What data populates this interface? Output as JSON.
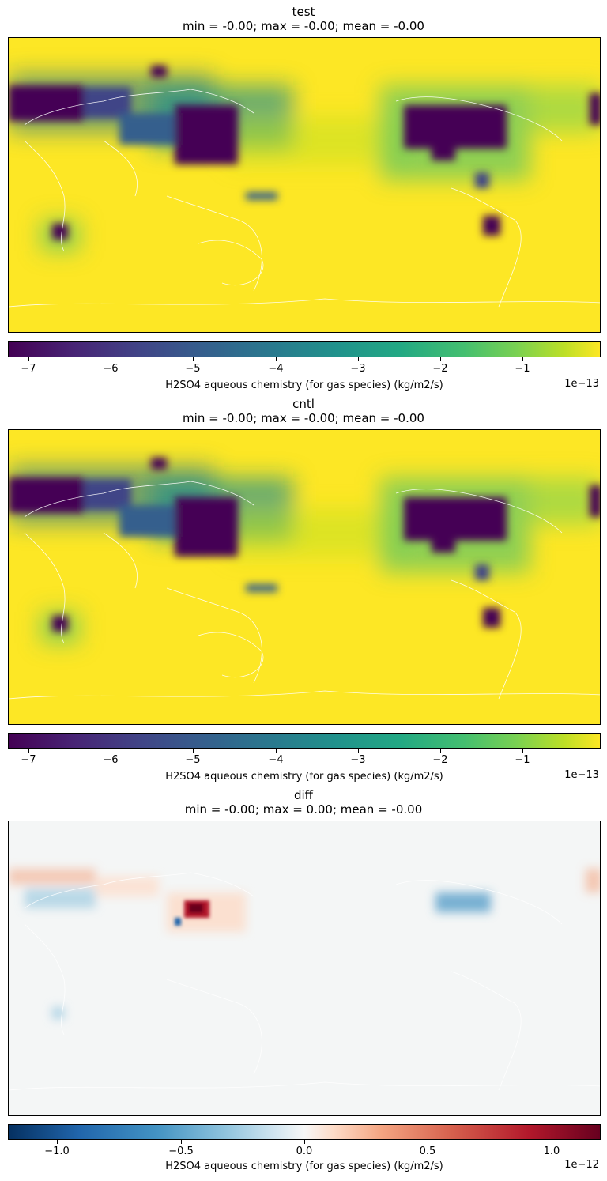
{
  "panels": [
    {
      "name": "test",
      "stats": "min = -0.00; max = -0.00; mean = -0.00",
      "colormap": "viridis",
      "colorbar": {
        "range": [
          -7.25,
          -0.05
        ],
        "ticks": [
          "−7",
          "−6",
          "−5",
          "−4",
          "−3",
          "−2",
          "−1"
        ],
        "tick_values": [
          -7,
          -6,
          -5,
          -4,
          -3,
          -2,
          -1
        ],
        "label": "H2SO4 aqueous chemistry (for gas species) (kg/m2/s)",
        "offset": "1e−13"
      }
    },
    {
      "name": "cntl",
      "stats": "min = -0.00; max = -0.00; mean = -0.00",
      "colormap": "viridis",
      "colorbar": {
        "range": [
          -7.25,
          -0.05
        ],
        "ticks": [
          "−7",
          "−6",
          "−5",
          "−4",
          "−3",
          "−2",
          "−1"
        ],
        "tick_values": [
          -7,
          -6,
          -5,
          -4,
          -3,
          -2,
          -1
        ],
        "label": "H2SO4 aqueous chemistry (for gas species) (kg/m2/s)",
        "offset": "1e−13"
      }
    },
    {
      "name": "diff",
      "stats": "min = -0.00; max = 0.00; mean = -0.00",
      "colormap": "RdBu_r",
      "colorbar": {
        "range": [
          -1.2,
          1.2
        ],
        "ticks": [
          "−1.0",
          "−0.5",
          "0.0",
          "0.5",
          "1.0"
        ],
        "tick_values": [
          -1.0,
          -0.5,
          0.0,
          0.5,
          1.0
        ],
        "label": "H2SO4 aqueous chemistry (for gas species) (kg/m2/s)",
        "offset": "1e−12"
      }
    }
  ]
}
